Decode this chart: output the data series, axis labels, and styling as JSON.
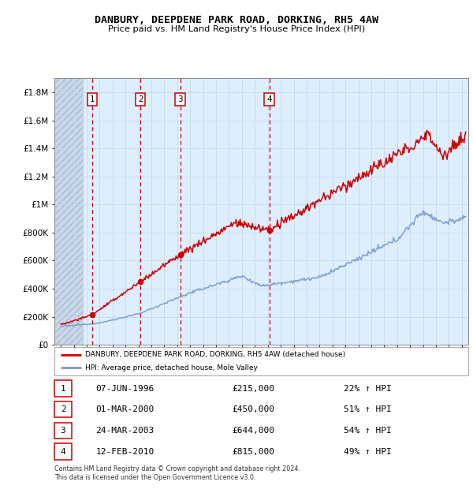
{
  "title": "DANBURY, DEEPDENE PARK ROAD, DORKING, RH5 4AW",
  "subtitle": "Price paid vs. HM Land Registry's House Price Index (HPI)",
  "xlim": [
    1993.5,
    2025.5
  ],
  "ylim": [
    0,
    1900000
  ],
  "yticks": [
    0,
    200000,
    400000,
    600000,
    800000,
    1000000,
    1200000,
    1400000,
    1600000,
    1800000
  ],
  "ytick_labels": [
    "£0",
    "£200K",
    "£400K",
    "£600K",
    "£800K",
    "£1M",
    "£1.2M",
    "£1.4M",
    "£1.6M",
    "£1.8M"
  ],
  "sale_dates": [
    1996.44,
    2000.16,
    2003.23,
    2010.12
  ],
  "sale_prices": [
    215000,
    450000,
    644000,
    815000
  ],
  "sale_labels": [
    "1",
    "2",
    "3",
    "4"
  ],
  "property_color": "#cc0000",
  "hpi_color": "#7799cc",
  "legend_property": "DANBURY, DEEPDENE PARK ROAD, DORKING, RH5 4AW (detached house)",
  "legend_hpi": "HPI: Average price, detached house, Mole Valley",
  "table_entries": [
    {
      "label": "1",
      "date": "07-JUN-1996",
      "price": "£215,000",
      "change": "22% ↑ HPI"
    },
    {
      "label": "2",
      "date": "01-MAR-2000",
      "price": "£450,000",
      "change": "51% ↑ HPI"
    },
    {
      "label": "3",
      "date": "24-MAR-2003",
      "price": "£644,000",
      "change": "54% ↑ HPI"
    },
    {
      "label": "4",
      "date": "12-FEB-2010",
      "price": "£815,000",
      "change": "49% ↑ HPI"
    }
  ],
  "footnote": "Contains HM Land Registry data © Crown copyright and database right 2024.\nThis data is licensed under the Open Government Licence v3.0.",
  "grid_color": "#c8d8e8",
  "dashed_line_color": "#cc0000",
  "hatch_color": "#c8d8ea"
}
